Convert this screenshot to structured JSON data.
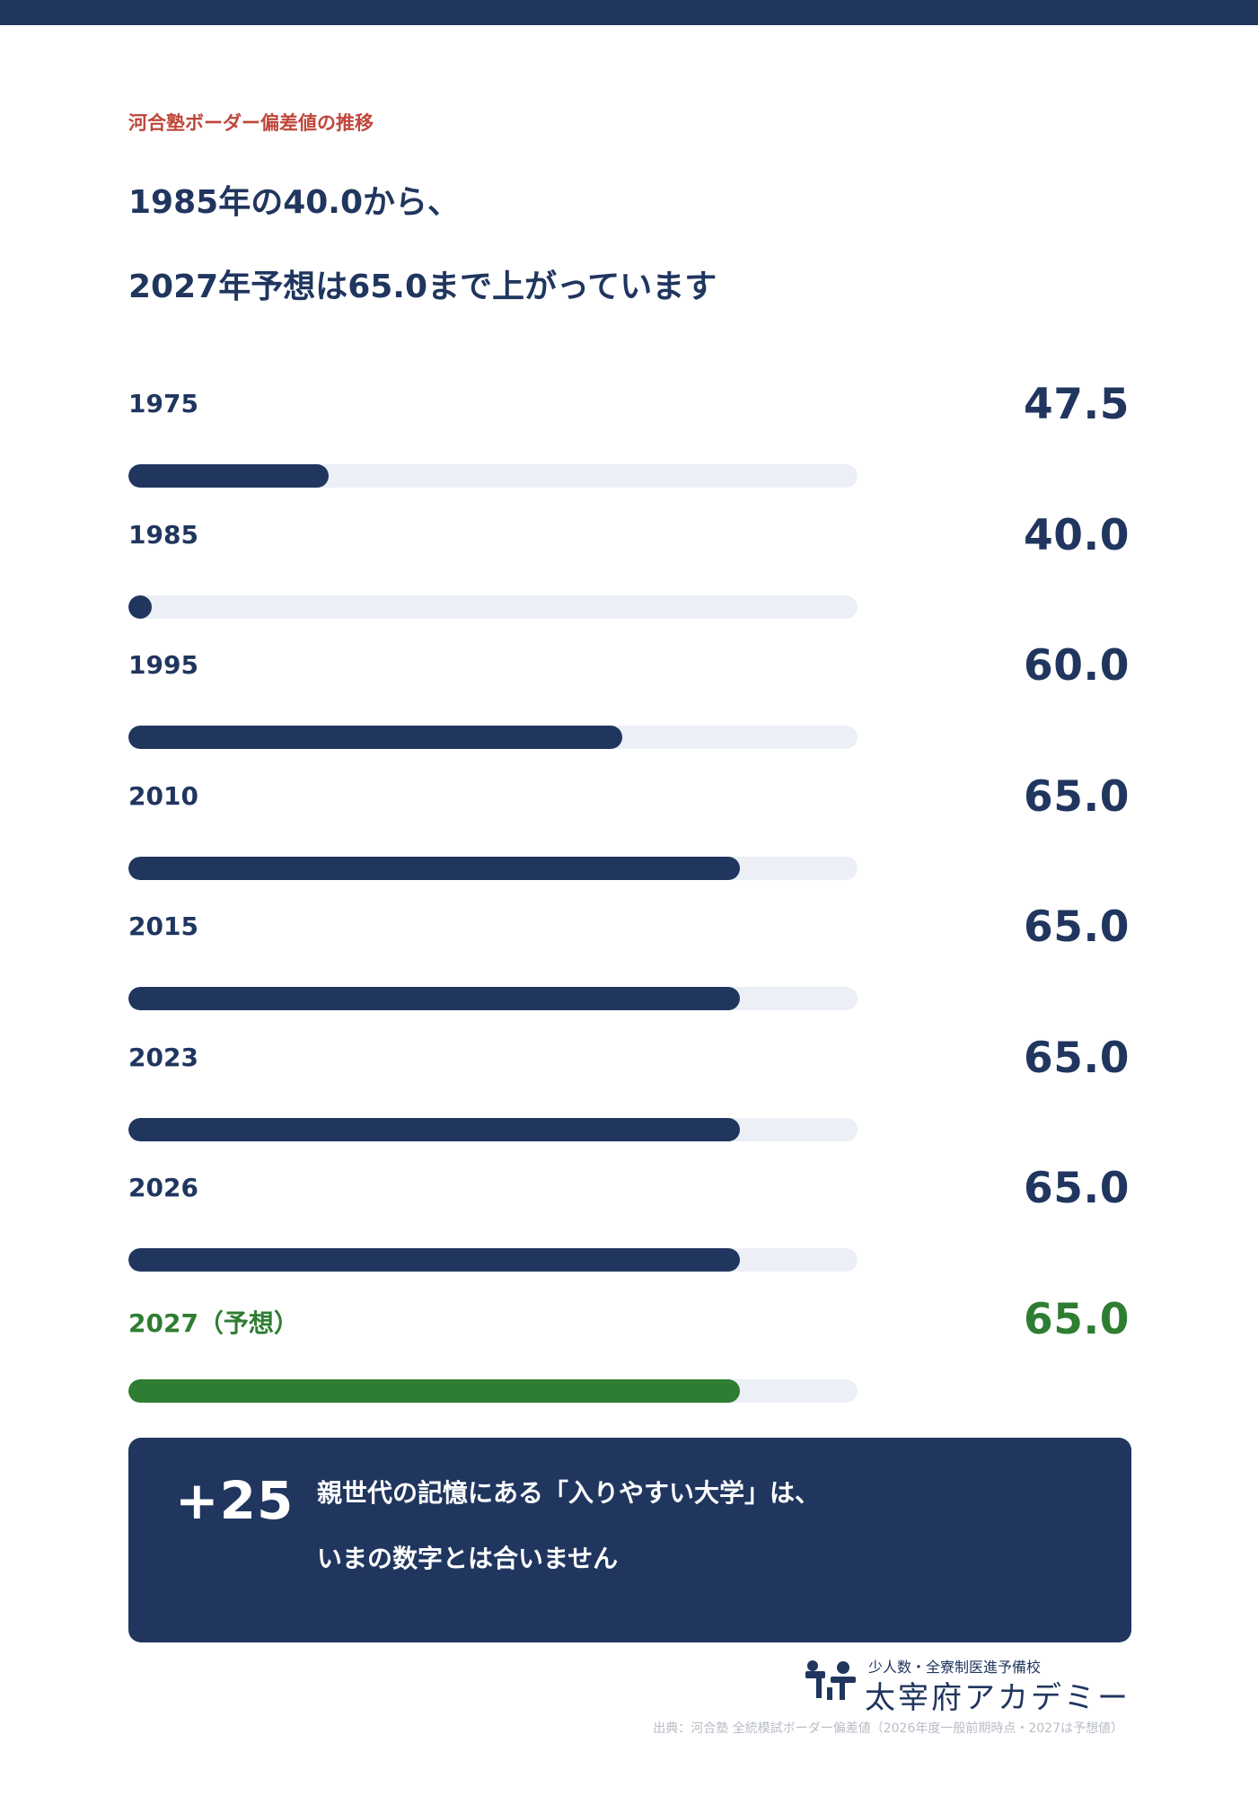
{
  "header": {
    "eyebrow": "河合塾ボーダー偏差値の推移",
    "headline_line1": "1985年の40.0から、",
    "headline_line2": "2027年予想は65.0まで上がっています"
  },
  "chart_data": {
    "type": "bar",
    "orientation": "horizontal",
    "categories": [
      "1975",
      "1985",
      "1995",
      "2010",
      "2015",
      "2023",
      "2026",
      "2027（予想）"
    ],
    "values": [
      47.5,
      40.0,
      60.0,
      65.0,
      65.0,
      65.0,
      65.0,
      65.0
    ],
    "value_labels": [
      "47.5",
      "40.0",
      "60.0",
      "65.0",
      "65.0",
      "65.0",
      "65.0",
      "65.0"
    ],
    "highlight_index": 7,
    "xlim": [
      39,
      70
    ],
    "colors": {
      "bar": "#20365f",
      "track": "#eceff6",
      "highlight": "#2e7d32"
    }
  },
  "callout": {
    "number": "+25",
    "line1": "親世代の記憶にある「入りやすい大学」は、",
    "line2": "いまの数字とは合いません"
  },
  "logo": {
    "subtitle": "少人数・全寮制医進予備校",
    "name": "太宰府アカデミー"
  },
  "source": "出典：河合塾 全統模試ボーダー偏差値（2026年度一般前期時点・2027は予想値）"
}
